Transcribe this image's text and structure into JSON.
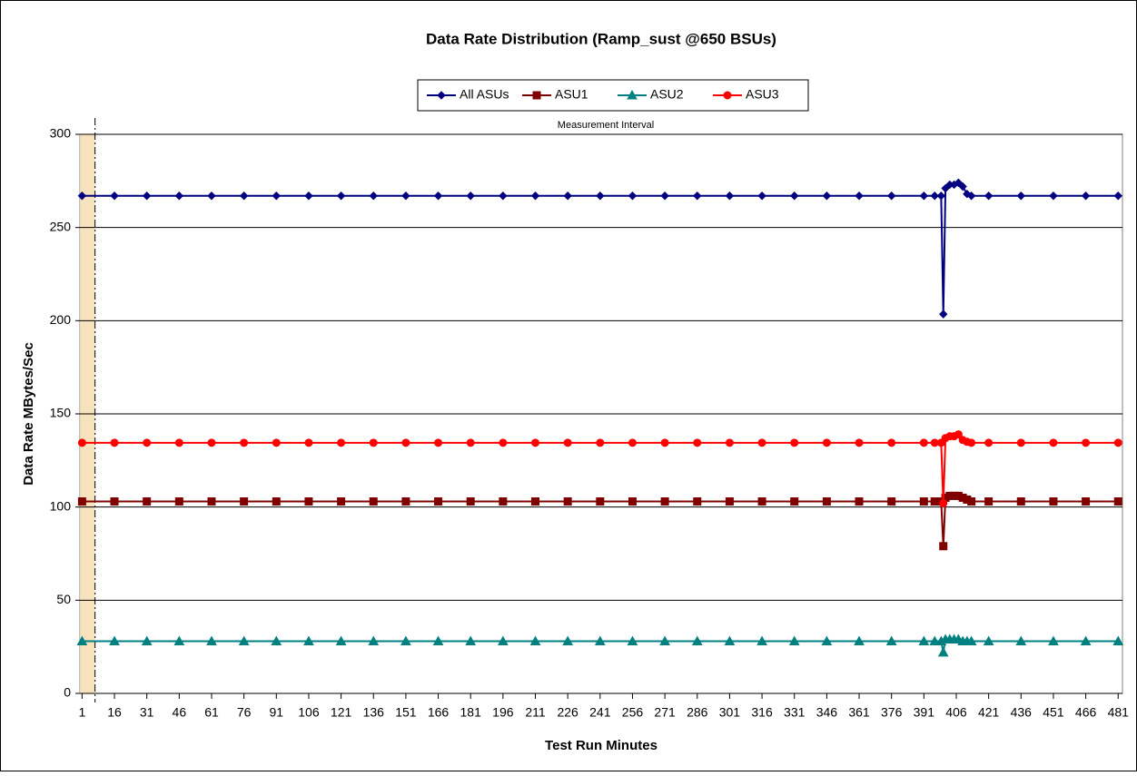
{
  "chart_data": {
    "type": "line",
    "title": "Data Rate Distribution (Ramp_sust @650 BSUs)",
    "x_label": "Test Run Minutes",
    "y_label": "Data Rate MBytes/Sec",
    "annotation": "Measurement Interval",
    "interval_start": 7,
    "x": [
      1,
      16,
      31,
      46,
      61,
      76,
      91,
      106,
      121,
      136,
      151,
      166,
      181,
      196,
      211,
      226,
      241,
      256,
      271,
      286,
      301,
      316,
      331,
      346,
      361,
      376,
      391,
      396,
      399,
      400,
      401,
      403,
      405,
      407,
      409,
      411,
      413,
      421,
      436,
      451,
      466,
      481
    ],
    "series": [
      {
        "name": "All ASUs",
        "color": "#000080",
        "marker": "diamond",
        "values": [
          267,
          267,
          267,
          267,
          267,
          267,
          267,
          267,
          267,
          267,
          267,
          267,
          267,
          267,
          267,
          267,
          267,
          267,
          267,
          267,
          267,
          267,
          267,
          267,
          267,
          267,
          267,
          267,
          267,
          203.5,
          271,
          273,
          273,
          274,
          272,
          268,
          267,
          267,
          267,
          267,
          267,
          267
        ]
      },
      {
        "name": "ASU1",
        "color": "#800000",
        "marker": "square",
        "values": [
          103,
          103,
          103,
          103,
          103,
          103,
          103,
          103,
          103,
          103,
          103,
          103,
          103,
          103,
          103,
          103,
          103,
          103,
          103,
          103,
          103,
          103,
          103,
          103,
          103,
          103,
          103,
          103,
          103,
          79,
          105,
          106,
          106,
          106,
          105,
          104,
          103,
          103,
          103,
          103,
          103,
          103
        ]
      },
      {
        "name": "ASU2",
        "color": "#008080",
        "marker": "triangle",
        "values": [
          28,
          28,
          28,
          28,
          28,
          28,
          28,
          28,
          28,
          28,
          28,
          28,
          28,
          28,
          28,
          28,
          28,
          28,
          28,
          28,
          28,
          28,
          28,
          28,
          28,
          28,
          28,
          28,
          28,
          22,
          29,
          29,
          29,
          29,
          28,
          28,
          28,
          28,
          28,
          28,
          28,
          28
        ]
      },
      {
        "name": "ASU3",
        "color": "#ff0000",
        "marker": "circle",
        "values": [
          134.5,
          134.5,
          134.5,
          134.5,
          134.5,
          134.5,
          134.5,
          134.5,
          134.5,
          134.5,
          134.5,
          134.5,
          134.5,
          134.5,
          134.5,
          134.5,
          134.5,
          134.5,
          134.5,
          134.5,
          134.5,
          134.5,
          134.5,
          134.5,
          134.5,
          134.5,
          134.5,
          134.5,
          134.5,
          102,
          137,
          138,
          138,
          139,
          136,
          135,
          134.5,
          134.5,
          134.5,
          134.5,
          134.5,
          134.5
        ]
      }
    ],
    "xlim": [
      0,
      483
    ],
    "xticks": [
      1,
      16,
      31,
      46,
      61,
      76,
      91,
      106,
      121,
      136,
      151,
      166,
      181,
      196,
      211,
      226,
      241,
      256,
      271,
      286,
      301,
      316,
      331,
      346,
      361,
      376,
      391,
      406,
      421,
      436,
      451,
      466,
      481
    ],
    "ylim": [
      0,
      300
    ],
    "yticks": [
      0,
      50,
      100,
      150,
      200,
      250,
      300
    ],
    "grid": true
  }
}
